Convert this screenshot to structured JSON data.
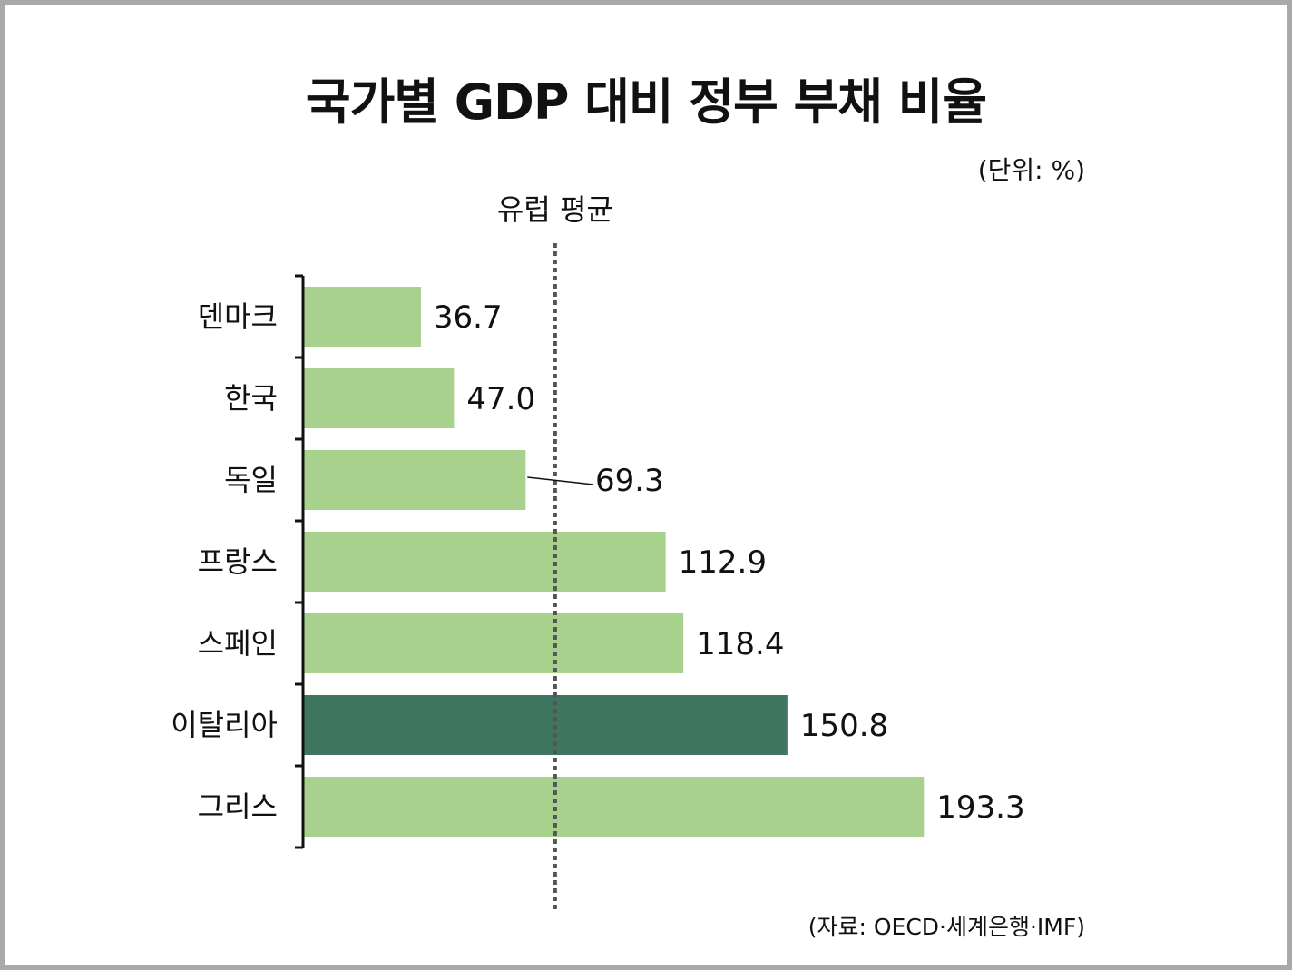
{
  "title": "국가별 GDP 대비 정부 부채 비율",
  "unit": "(단위: %)",
  "source": "(자료: OECD·세계은행·IMF)",
  "colors": {
    "bar": "#a9d18e",
    "highlight": "#3e7660",
    "reference_line": "#555555",
    "axis": "#111111",
    "frame": "#a9a9a9"
  },
  "chart_data": {
    "type": "bar",
    "orientation": "horizontal",
    "title": "국가별 GDP 대비 정부 부채 비율",
    "unit": "%",
    "categories": [
      "덴마크",
      "한국",
      "독일",
      "프랑스",
      "스페인",
      "이탈리아",
      "그리스"
    ],
    "values": [
      36.7,
      47.0,
      69.3,
      112.9,
      118.4,
      150.8,
      193.3
    ],
    "value_labels": [
      "36.7",
      "47.0",
      "69.3",
      "112.9",
      "118.4",
      "150.8",
      "193.3"
    ],
    "highlight_category": "이탈리아",
    "reference_line": {
      "label": "유럽 평균",
      "value": 78.5
    },
    "xlim": [
      0,
      200
    ],
    "grid": false,
    "legend": "none"
  }
}
